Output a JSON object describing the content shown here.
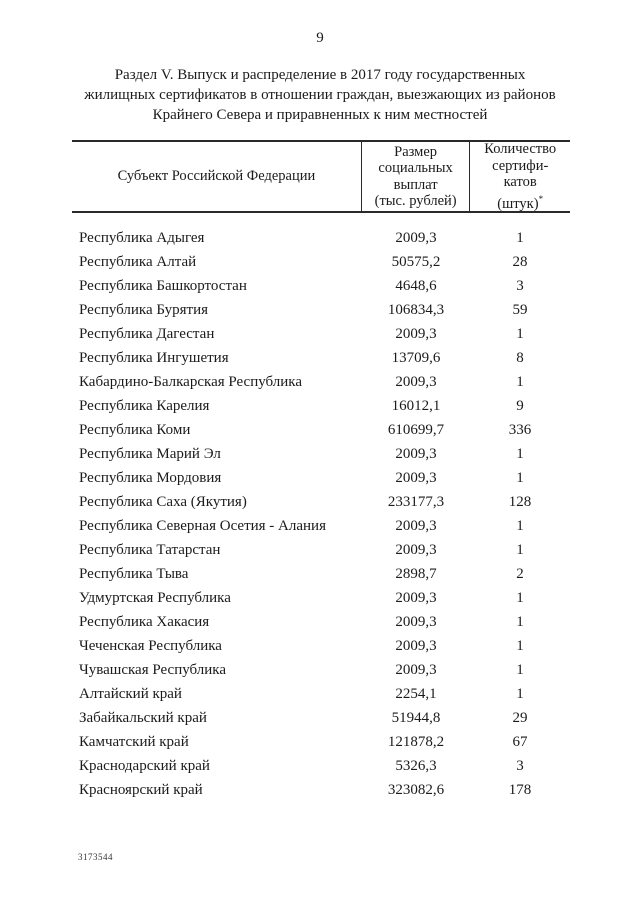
{
  "page": {
    "number": "9",
    "footer_code": "3173544",
    "text_color": "#1b1b1b",
    "background_color": "#ffffff"
  },
  "title": {
    "text": "Раздел V. Выпуск и распределение в 2017 году государственных\nжилищных сертификатов в отношении граждан, выезжающих из районов\nКрайнего Севера и приравненных к ним местностей"
  },
  "table": {
    "header": {
      "col1": "Субъект Российской Федерации",
      "col2": "Размер\nсоциальных\nвыплат\n(тыс. рублей)",
      "col3_line1": "Количество",
      "col3_line2": "сертифи-",
      "col3_line3": "катов",
      "col3_line4": "(штук)",
      "col3_note_mark": "*"
    },
    "rows": [
      [
        "Республика Адыгея",
        "2009,3",
        "1"
      ],
      [
        "Республика Алтай",
        "50575,2",
        "28"
      ],
      [
        "Республика Башкортостан",
        "4648,6",
        "3"
      ],
      [
        "Республика Бурятия",
        "106834,3",
        "59"
      ],
      [
        "Республика Дагестан",
        "2009,3",
        "1"
      ],
      [
        "Республика Ингушетия",
        "13709,6",
        "8"
      ],
      [
        "Кабардино-Балкарская Республика",
        "2009,3",
        "1"
      ],
      [
        "Республика Карелия",
        "16012,1",
        "9"
      ],
      [
        "Республика Коми",
        "610699,7",
        "336"
      ],
      [
        "Республика Марий Эл",
        "2009,3",
        "1"
      ],
      [
        "Республика Мордовия",
        "2009,3",
        "1"
      ],
      [
        "Республика Саха (Якутия)",
        "233177,3",
        "128"
      ],
      [
        "Республика Северная Осетия - Алания",
        "2009,3",
        "1"
      ],
      [
        "Республика Татарстан",
        "2009,3",
        "1"
      ],
      [
        "Республика Тыва",
        "2898,7",
        "2"
      ],
      [
        "Удмуртская Республика",
        "2009,3",
        "1"
      ],
      [
        "Республика Хакасия",
        "2009,3",
        "1"
      ],
      [
        "Чеченская Республика",
        "2009,3",
        "1"
      ],
      [
        "Чувашская Республика",
        "2009,3",
        "1"
      ],
      [
        "Алтайский край",
        "2254,1",
        "1"
      ],
      [
        "Забайкальский край",
        "51944,8",
        "29"
      ],
      [
        "Камчатский край",
        "121878,2",
        "67"
      ],
      [
        "Краснодарский край",
        "5326,3",
        "3"
      ],
      [
        "Красноярский край",
        "323082,6",
        "178"
      ]
    ]
  }
}
